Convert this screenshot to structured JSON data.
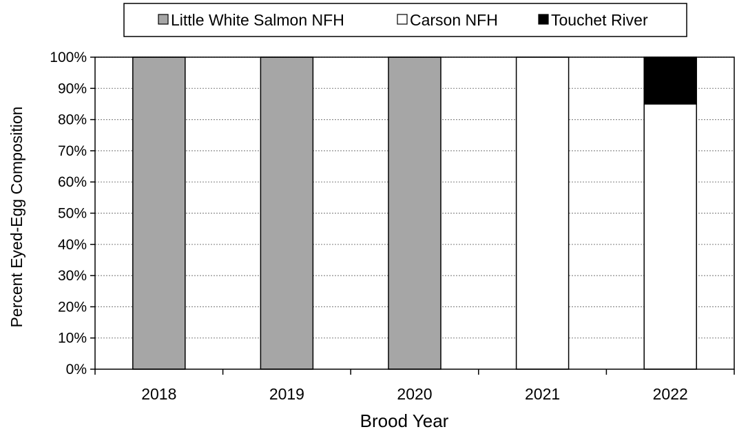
{
  "chart_data": {
    "type": "bar",
    "stacked": true,
    "title": "",
    "xlabel": "Brood Year",
    "ylabel": "Percent Eyed-Egg Composition",
    "categories": [
      "2018",
      "2019",
      "2020",
      "2021",
      "2022"
    ],
    "series": [
      {
        "name": "Little White Salmon NFH",
        "values": [
          100,
          100,
          100,
          0,
          0
        ],
        "color": "#a6a6a6"
      },
      {
        "name": "Carson NFH",
        "values": [
          0,
          0,
          0,
          100,
          85
        ],
        "color": "#ffffff"
      },
      {
        "name": "Touchet River",
        "values": [
          0,
          0,
          0,
          0,
          15
        ],
        "color": "#000000"
      }
    ],
    "ylim": [
      0,
      100
    ],
    "yticks": [
      0,
      10,
      20,
      30,
      40,
      50,
      60,
      70,
      80,
      90,
      100
    ],
    "ytick_labels": [
      "0%",
      "10%",
      "20%",
      "30%",
      "40%",
      "50%",
      "60%",
      "70%",
      "80%",
      "90%",
      "100%"
    ],
    "grid": "horizontal-dotted",
    "legend_position": "top"
  }
}
